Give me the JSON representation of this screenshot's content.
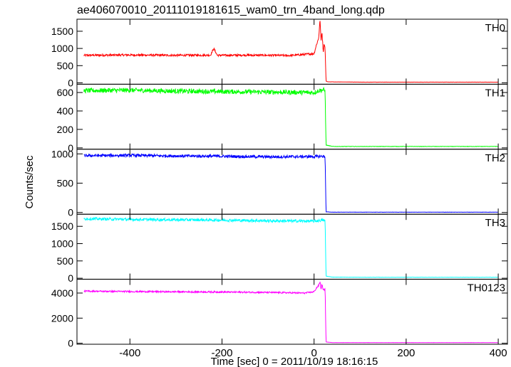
{
  "chart_data": {
    "type": "line",
    "title": "ae406070010_20111019181615_wam0_trn_4band_long.qdp",
    "xlabel": "Time [sec] 0 = 2011/10/19 18:16:15",
    "ylabel": "Counts/sec",
    "xlim": [
      -515,
      420
    ],
    "xticks": [
      -400,
      -200,
      0,
      200,
      400
    ],
    "grid": false,
    "panels": [
      {
        "name": "TH0",
        "color": "#ff0000",
        "ylim": [
          -40,
          1850
        ],
        "yticks": [
          0,
          500,
          1000,
          1500
        ],
        "x": [
          -500,
          -400,
          -300,
          -225,
          -218,
          -210,
          -150,
          -50,
          0,
          5,
          10,
          13,
          15,
          17,
          20,
          22,
          24,
          26,
          30,
          100,
          200,
          300,
          400
        ],
        "y": [
          800,
          810,
          800,
          805,
          1000,
          800,
          805,
          795,
          850,
          1100,
          1300,
          1850,
          1200,
          1500,
          900,
          1150,
          1000,
          50,
          30,
          20,
          20,
          20,
          20
        ],
        "noise": 30
      },
      {
        "name": "TH1",
        "color": "#00ff00",
        "ylim": [
          -15,
          690
        ],
        "yticks": [
          0,
          200,
          400,
          600
        ],
        "x": [
          -500,
          -400,
          -300,
          -200,
          -100,
          0,
          10,
          20,
          24,
          26,
          40,
          100,
          200,
          300,
          400
        ],
        "y": [
          620,
          625,
          615,
          610,
          605,
          600,
          620,
          630,
          615,
          30,
          15,
          15,
          15,
          15,
          15
        ],
        "noise": 25
      },
      {
        "name": "TH2",
        "color": "#0000ff",
        "ylim": [
          -30,
          1080
        ],
        "yticks": [
          0,
          500,
          1000
        ],
        "x": [
          -500,
          -400,
          -300,
          -200,
          -100,
          0,
          20,
          24,
          26,
          40,
          100,
          200,
          300,
          400
        ],
        "y": [
          970,
          975,
          965,
          960,
          950,
          955,
          960,
          950,
          10,
          5,
          5,
          5,
          5,
          5
        ],
        "noise": 25
      },
      {
        "name": "TH3",
        "color": "#00ffff",
        "ylim": [
          -30,
          1850
        ],
        "yticks": [
          0,
          500,
          1000,
          1500
        ],
        "x": [
          -500,
          -400,
          -300,
          -200,
          -100,
          0,
          20,
          24,
          26,
          40,
          100,
          200,
          300,
          400
        ],
        "y": [
          1720,
          1700,
          1690,
          1680,
          1660,
          1650,
          1680,
          1650,
          60,
          30,
          25,
          25,
          25,
          25
        ],
        "noise": 40
      },
      {
        "name": "TH0123",
        "color": "#ff00ff",
        "ylim": [
          -80,
          5100
        ],
        "yticks": [
          0,
          2000,
          4000
        ],
        "x": [
          -500,
          -400,
          -300,
          -200,
          -100,
          -20,
          0,
          5,
          10,
          13,
          15,
          17,
          20,
          24,
          26,
          40,
          100,
          200,
          300,
          400
        ],
        "y": [
          4150,
          4120,
          4100,
          4080,
          4050,
          4000,
          4100,
          4400,
          4600,
          4900,
          4300,
          4700,
          4250,
          4300,
          100,
          50,
          50,
          50,
          50,
          50
        ],
        "noise": 60
      }
    ]
  }
}
